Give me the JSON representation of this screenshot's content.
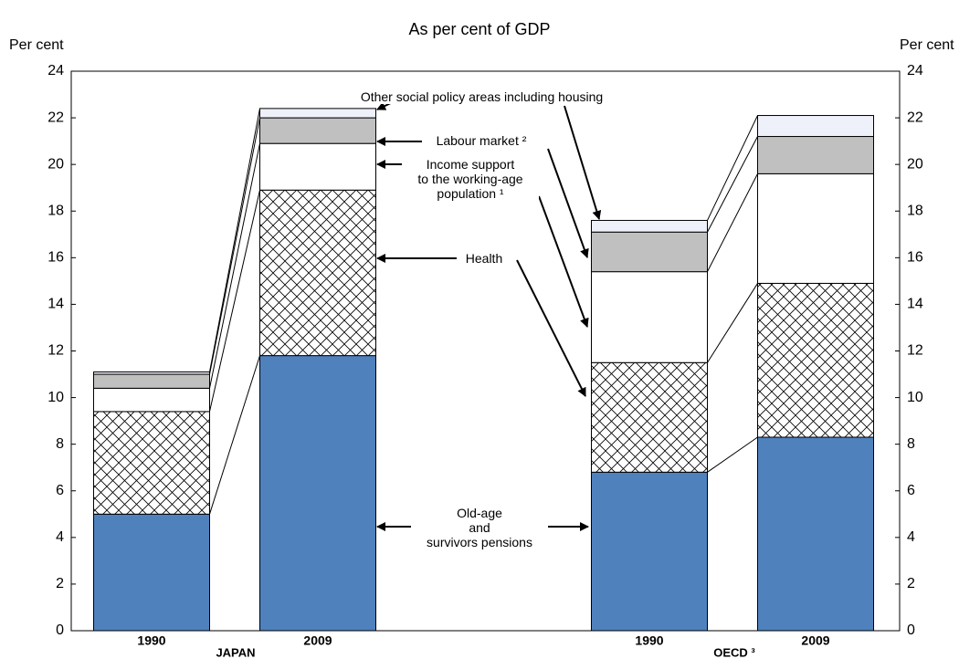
{
  "chart_data": {
    "type": "stacked-bar",
    "title": "As per cent of GDP",
    "y_label": "Per cent",
    "y2_label": "Per cent",
    "categories": [
      "1990",
      "2009",
      "1990",
      "2009"
    ],
    "groups": [
      "JAPAN",
      "OECD ³"
    ],
    "series": [
      {
        "name": "Old-age\nand\nsurvivors pensions",
        "color": "#4f81bd",
        "values": [
          5.0,
          11.8,
          6.8,
          8.3
        ]
      },
      {
        "name": "Health",
        "color": "#ffffff",
        "pattern": "crosshatch",
        "values": [
          4.4,
          7.1,
          4.7,
          6.6
        ]
      },
      {
        "name": "Income support\nto the working-age\npopulation ¹",
        "color": "#ffffff",
        "values": [
          1.0,
          2.0,
          3.9,
          4.7
        ]
      },
      {
        "name": "Labour market ²",
        "color": "#c0c0c0",
        "values": [
          0.6,
          1.1,
          1.7,
          1.6
        ]
      },
      {
        "name": "Other social policy areas including housing",
        "color": "#eef0fa",
        "values": [
          0.1,
          0.4,
          0.5,
          0.9
        ]
      }
    ],
    "ylim": [
      0,
      24
    ],
    "yticks": [
      0,
      2,
      4,
      6,
      8,
      10,
      12,
      14,
      16,
      18,
      20,
      22,
      24
    ],
    "y2lim": [
      0,
      24
    ],
    "y2ticks": [
      0,
      2,
      4,
      6,
      8,
      10,
      12,
      14,
      16,
      18,
      20,
      22,
      24
    ]
  }
}
